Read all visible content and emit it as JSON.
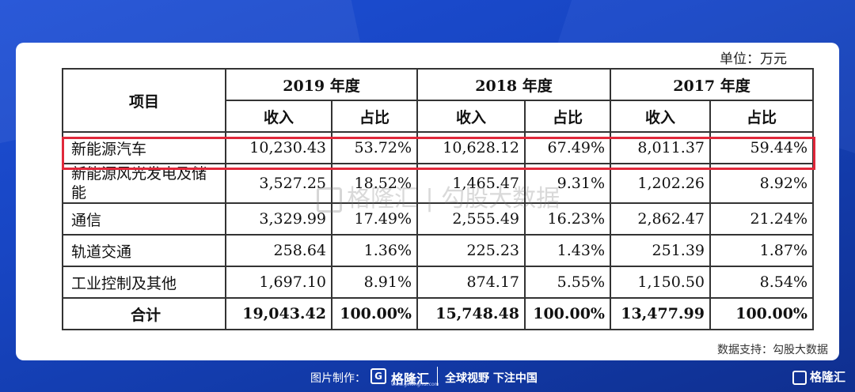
{
  "unit_label": "单位：万元",
  "header": {
    "item_label": "项目",
    "years": [
      "2019 年度",
      "2018 年度",
      "2017 年度"
    ],
    "revenue_label": "收入",
    "share_label": "占比"
  },
  "rows": [
    {
      "name": "新能源汽车",
      "cells": [
        "10,230.43",
        "53.72%",
        "10,628.12",
        "67.49%",
        "8,011.37",
        "59.44%"
      ]
    },
    {
      "name": "新能源风光发电及储能",
      "cells": [
        "3,527.25",
        "18.52%",
        "1,465.47",
        "9.31%",
        "1,202.26",
        "8.92%"
      ]
    },
    {
      "name": "通信",
      "cells": [
        "3,329.99",
        "17.49%",
        "2,555.49",
        "16.23%",
        "2,862.47",
        "21.24%"
      ]
    },
    {
      "name": "轨道交通",
      "cells": [
        "258.64",
        "1.36%",
        "225.23",
        "1.43%",
        "251.39",
        "1.87%"
      ]
    },
    {
      "name": "工业控制及其他",
      "cells": [
        "1,697.10",
        "8.91%",
        "874.17",
        "5.55%",
        "1,150.50",
        "8.54%"
      ]
    }
  ],
  "total": {
    "name": "合计",
    "cells": [
      "19,043.42",
      "100.00%",
      "15,748.48",
      "100.00%",
      "13,477.99",
      "100.00%"
    ]
  },
  "watermark": {
    "brand": "格隆汇",
    "text": "勾股大数据"
  },
  "source_note": "数据支持：勾股大数据",
  "footer": {
    "made_by": "图片制作：",
    "logo_letter": "G",
    "brand": "格隆汇",
    "brand_url": "www.gelonghui.com",
    "slogan": "全球视野 下注中国",
    "corner_brand": "格隆汇"
  },
  "colors": {
    "highlight": "#e0283a",
    "background": "#1846c4"
  }
}
